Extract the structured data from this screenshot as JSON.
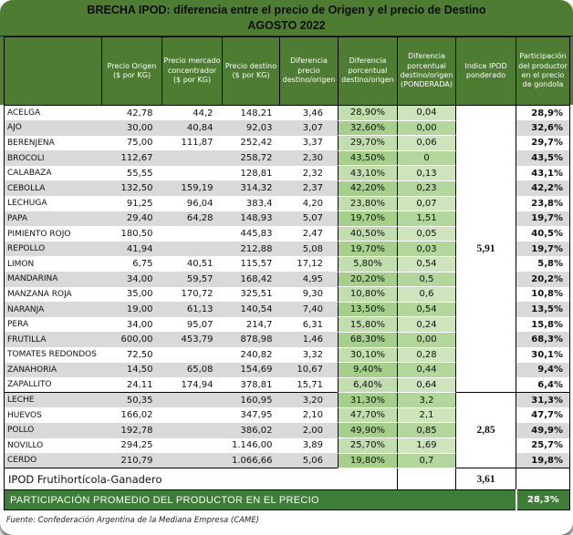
{
  "chart_data": {
    "type": "table",
    "title": "BRECHA IPOD: diferencia entre el precio de Origen y el precio de Destino",
    "subtitle": "AGOSTO 2022",
    "columns": [
      "",
      "Precio Origen ($ por KG)",
      "Precio mercado concentrador ($ por KG)",
      "Precio destino ($ por KG)",
      "Diferencia precio destino/origen",
      "Diferencia porcentual destino/origen",
      "Diferencia porcentual destino/origen (PONDERADA)",
      "Indice IPOD ponderado",
      "Participación del productor en el precio de gondola"
    ],
    "rows": [
      {
        "name": "ACELGA",
        "origen": "42,78",
        "mercado": "44,2",
        "destino": "148,21",
        "dif": "3,46",
        "pct": "28,90%",
        "pond": "0,04",
        "part": "28,9%"
      },
      {
        "name": "AJO",
        "origen": "30,00",
        "mercado": "40,84",
        "destino": "92,03",
        "dif": "3,07",
        "pct": "32,60%",
        "pond": "0,00",
        "part": "32,6%"
      },
      {
        "name": "BERENJENA",
        "origen": "75,00",
        "mercado": "111,87",
        "destino": "252,42",
        "dif": "3,37",
        "pct": "29,70%",
        "pond": "0,06",
        "part": "29,7%"
      },
      {
        "name": "BROCOLI",
        "origen": "112,67",
        "mercado": "",
        "destino": "258,72",
        "dif": "2,30",
        "pct": "43,50%",
        "pond": "0",
        "part": "43,5%"
      },
      {
        "name": "CALABAZA",
        "origen": "55,55",
        "mercado": "",
        "destino": "128,81",
        "dif": "2,32",
        "pct": "43,10%",
        "pond": "0,13",
        "part": "43,1%"
      },
      {
        "name": "CEBOLLA",
        "origen": "132,50",
        "mercado": "159,19",
        "destino": "314,32",
        "dif": "2,37",
        "pct": "42,20%",
        "pond": "0,23",
        "part": "42,2%"
      },
      {
        "name": "LECHUGA",
        "origen": "91,25",
        "mercado": "96,04",
        "destino": "383,4",
        "dif": "4,20",
        "pct": "23,80%",
        "pond": "0,07",
        "part": "23,8%"
      },
      {
        "name": "PAPA",
        "origen": "29,40",
        "mercado": "64,28",
        "destino": "148,93",
        "dif": "5,07",
        "pct": "19,70%",
        "pond": "1,51",
        "part": "19,7%"
      },
      {
        "name": "PIMIENTO ROJO",
        "origen": "180,50",
        "mercado": "",
        "destino": "445,83",
        "dif": "2,47",
        "pct": "40,50%",
        "pond": "0,05",
        "part": "40,5%"
      },
      {
        "name": "REPOLLO",
        "origen": "41,94",
        "mercado": "",
        "destino": "212,88",
        "dif": "5,08",
        "pct": "19,70%",
        "pond": "0,03",
        "part": "19,7%"
      },
      {
        "name": "LIMON",
        "origen": "6,75",
        "mercado": "40,51",
        "destino": "115,57",
        "dif": "17,12",
        "pct": "5,80%",
        "pond": "0,54",
        "part": "5,8%"
      },
      {
        "name": "MANDARINA",
        "origen": "34,00",
        "mercado": "59,57",
        "destino": "168,42",
        "dif": "4,95",
        "pct": "20,20%",
        "pond": "0,5",
        "part": "20,2%"
      },
      {
        "name": "MANZANA ROJA",
        "origen": "35,00",
        "mercado": "170,72",
        "destino": "325,51",
        "dif": "9,30",
        "pct": "10,80%",
        "pond": "0,6",
        "part": "10,8%"
      },
      {
        "name": "NARANJA",
        "origen": "19,00",
        "mercado": "61,13",
        "destino": "140,54",
        "dif": "7,40",
        "pct": "13,50%",
        "pond": "0,54",
        "part": "13,5%"
      },
      {
        "name": "PERA",
        "origen": "34,00",
        "mercado": "95,07",
        "destino": "214,7",
        "dif": "6,31",
        "pct": "15,80%",
        "pond": "0,24",
        "part": "15,8%"
      },
      {
        "name": "FRUTILLA",
        "origen": "600,00",
        "mercado": "453,79",
        "destino": "878,98",
        "dif": "1,46",
        "pct": "68,30%",
        "pond": "0,00",
        "part": "68,3%"
      },
      {
        "name": "TOMATES REDONDOS",
        "origen": "72,50",
        "mercado": "",
        "destino": "240,82",
        "dif": "3,32",
        "pct": "30,10%",
        "pond": "0,28",
        "part": "30,1%"
      },
      {
        "name": "ZANAHORIA",
        "origen": "14,50",
        "mercado": "65,08",
        "destino": "154,69",
        "dif": "10,67",
        "pct": "9,40%",
        "pond": "0,44",
        "part": "9,4%"
      },
      {
        "name": "ZAPALLITO",
        "origen": "24,11",
        "mercado": "174,94",
        "destino": "378,81",
        "dif": "15,71",
        "pct": "6,40%",
        "pond": "0,64",
        "part": "6,4%"
      },
      {
        "name": "LECHE",
        "origen": "50,35",
        "mercado": "",
        "destino": "160,95",
        "dif": "3,20",
        "pct": "31,30%",
        "pond": "3,2",
        "part": "31,3%"
      },
      {
        "name": "HUEVOS",
        "origen": "166,02",
        "mercado": "",
        "destino": "347,95",
        "dif": "2,10",
        "pct": "47,70%",
        "pond": "2,1",
        "part": "47,7%"
      },
      {
        "name": "POLLO",
        "origen": "192,78",
        "mercado": "",
        "destino": "386,02",
        "dif": "2,00",
        "pct": "49,90%",
        "pond": "0,85",
        "part": "49,9%"
      },
      {
        "name": "NOVILLO",
        "origen": "294,25",
        "mercado": "",
        "destino": "1.146,00",
        "dif": "3,89",
        "pct": "25,70%",
        "pond": "1,69",
        "part": "25,7%"
      },
      {
        "name": "CERDO",
        "origen": "210,79",
        "mercado": "",
        "destino": "1.066,66",
        "dif": "5,06",
        "pct": "19,80%",
        "pond": "0,7",
        "part": "19,8%"
      }
    ],
    "ipod_merged": {
      "frutihorticola": "5,91",
      "ganadero": "2,85"
    },
    "total_row": {
      "label": "IPOD Frutihortícola-Ganadero",
      "value": "3,61"
    },
    "summary_row": {
      "label": "PARTICIPACIÓN PROMEDIO DEL PRODUCTOR EN EL PRECIO",
      "value": "28,3%"
    },
    "footer": "Fuente: Confederación Argentina de la Mediana Empresa (CAME)",
    "layout_hints": {
      "sections": {
        "frutihorticola_rows": [
          0,
          18
        ],
        "ganadero_rows": [
          19,
          23
        ]
      },
      "grid": "striped rows, green percentage columns"
    }
  },
  "colors": {
    "header_green": "#4f7c33",
    "summary_green": "#3e7d38",
    "row_stripe_gray": "#d9d9d9",
    "pct_col_light": "#c2ddae",
    "pct_col_dark": "#a6cf8c",
    "pond_col_light": "#cde4bd",
    "pond_col_dark": "#b3d69d",
    "border_black": "#000000"
  }
}
